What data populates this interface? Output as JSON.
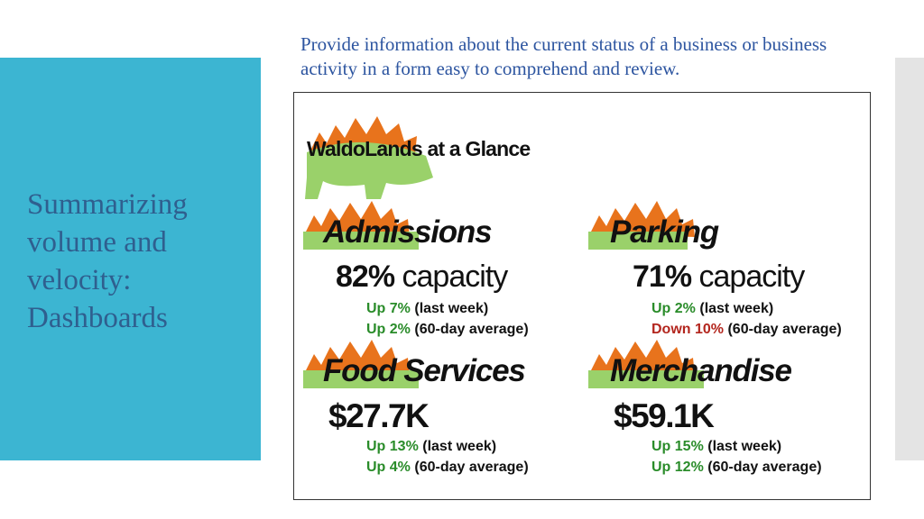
{
  "slide": {
    "title": "Summarizing\nvolume and\nvelocity:\nDashboards",
    "subtitle": "Provide information about the current status of a business or business activity in a form easy to comprehend and review."
  },
  "dashboard": {
    "logo_text": "WaldoLands at a Glance",
    "accent_colors": {
      "orange": "#e8731c",
      "green": "#9ad16a",
      "up": "#2a8c2a",
      "down": "#b3261e"
    },
    "admissions": {
      "title": "Admissions",
      "value": "82%",
      "unit": "capacity",
      "change1_dir": "Up 7%",
      "change1_label": "(last week)",
      "change2_dir": "Up 2%",
      "change2_label": "(60-day average)"
    },
    "parking": {
      "title": "Parking",
      "value": "71%",
      "unit": "capacity",
      "change1_dir": "Up 2%",
      "change1_label": "(last week)",
      "change2_dir": "Down 10%",
      "change2_label": "(60-day average)"
    },
    "food": {
      "title": "Food Services",
      "value": "$27.7K",
      "change1_dir": "Up 13%",
      "change1_label": "(last week)",
      "change2_dir": "Up 4%",
      "change2_label": "(60-day average)"
    },
    "merch": {
      "title": "Merchandise",
      "value": "$59.1K",
      "change1_dir": "Up 15%",
      "change1_label": "(last week)",
      "change2_dir": "Up 12%",
      "change2_label": "(60-day average)"
    }
  }
}
